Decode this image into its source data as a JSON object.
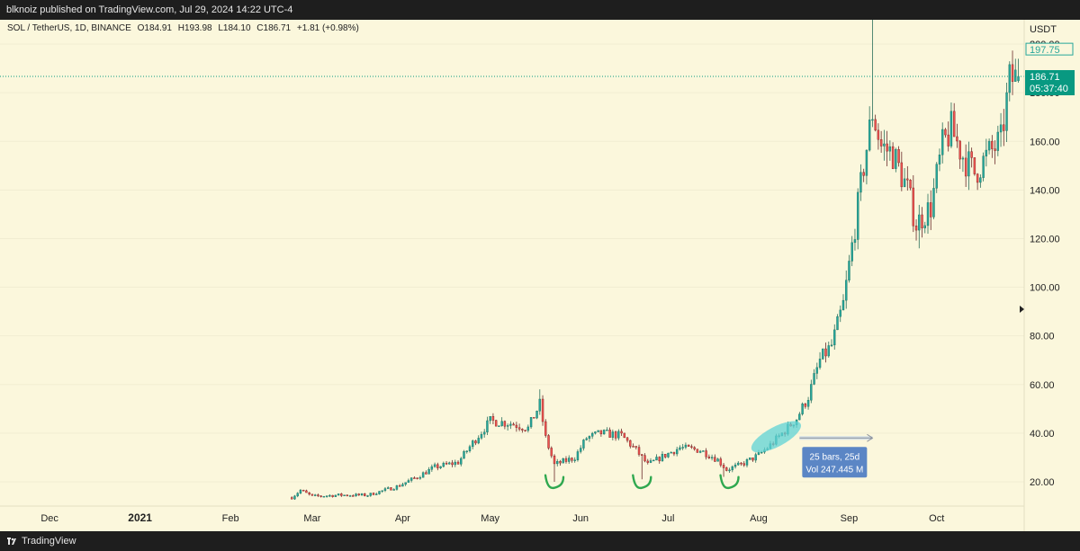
{
  "header": {
    "publish_text": "blknoiz published on TradingView.com, Jul 29, 2024 14:22 UTC-4"
  },
  "legend": {
    "symbol": "SOL / TetherUS, 1D, BINANCE",
    "open": "O184.91",
    "high": "H193.98",
    "low": "L184.10",
    "close": "C186.71",
    "change": "+1.81 (+0.98%)"
  },
  "footer": {
    "brand": "TradingView"
  },
  "price_scale": {
    "currency": "USDT",
    "last_price": "186.71",
    "countdown": "05:37:40",
    "high_label": "197.75",
    "partial_top_label": "200.00"
  },
  "measure": {
    "bars": "25 bars, 25d",
    "volume": "Vol 247.445 M"
  },
  "colors": {
    "up": "#26a69a",
    "down": "#ef5350",
    "background": "#fbf7dc",
    "highlight": "#5fd3d6",
    "annotation": "#2fa84f",
    "measure": "#5b86c5"
  },
  "chart_data": {
    "type": "candlestick",
    "symbol": "SOL / TetherUS",
    "interval": "1D",
    "exchange": "BINANCE",
    "last": {
      "open": 184.91,
      "high": 193.98,
      "low": 184.1,
      "close": 186.71,
      "change": 1.81,
      "change_pct": 0.98
    },
    "ylim": [
      10,
      210
    ],
    "yticks": [
      20,
      40,
      60,
      80,
      100,
      120,
      140,
      160,
      180,
      200
    ],
    "ytick_labels": [
      "20.00",
      "40.00",
      "60.00",
      "80.00",
      "100.00",
      "120.00",
      "140.00",
      "160.00",
      "180.00",
      "200.00"
    ],
    "xtick_labels": [
      "Dec",
      "2021",
      "Feb",
      "Mar",
      "Apr",
      "May",
      "Jun",
      "Jul",
      "Aug",
      "Sep",
      "Oct"
    ],
    "xticks": [
      "2020-12-01",
      "2021-01-01",
      "2021-02-01",
      "2021-03-01",
      "2021-04-01",
      "2021-05-01",
      "2021-06-01",
      "2021-07-01",
      "2021-08-01",
      "2021-09-01",
      "2021-10-01"
    ],
    "xlim": [
      "2020-11-14",
      "2021-10-31"
    ],
    "price_path": [
      [
        "2021-02-22",
        13.5
      ],
      [
        "2021-02-25",
        16.5
      ],
      [
        "2021-03-01",
        14
      ],
      [
        "2021-03-10",
        14.5
      ],
      [
        "2021-03-20",
        14.5
      ],
      [
        "2021-03-30",
        18
      ],
      [
        "2021-04-06",
        22
      ],
      [
        "2021-04-12",
        26
      ],
      [
        "2021-04-20",
        28
      ],
      [
        "2021-04-25",
        36
      ],
      [
        "2021-05-01",
        45
      ],
      [
        "2021-05-08",
        44
      ],
      [
        "2021-05-14",
        42
      ],
      [
        "2021-05-18",
        52
      ],
      [
        "2021-05-20",
        38
      ],
      [
        "2021-05-23",
        27
      ],
      [
        "2021-05-30",
        30
      ],
      [
        "2021-06-03",
        38
      ],
      [
        "2021-06-08",
        40
      ],
      [
        "2021-06-15",
        39
      ],
      [
        "2021-06-20",
        33
      ],
      [
        "2021-06-24",
        27
      ],
      [
        "2021-06-30",
        31
      ],
      [
        "2021-07-05",
        34
      ],
      [
        "2021-07-12",
        33
      ],
      [
        "2021-07-18",
        29
      ],
      [
        "2021-07-21",
        25
      ],
      [
        "2021-07-26",
        27
      ],
      [
        "2021-08-01",
        31
      ],
      [
        "2021-08-05",
        35
      ],
      [
        "2021-08-10",
        41
      ],
      [
        "2021-08-14",
        46
      ],
      [
        "2021-08-18",
        55
      ],
      [
        "2021-08-22",
        70
      ],
      [
        "2021-08-26",
        76
      ],
      [
        "2021-08-30",
        93
      ],
      [
        "2021-09-03",
        125
      ],
      [
        "2021-09-06",
        150
      ],
      [
        "2021-09-09",
        172
      ],
      [
        "2021-09-12",
        158
      ],
      [
        "2021-09-16",
        155
      ],
      [
        "2021-09-21",
        140
      ],
      [
        "2021-09-24",
        126
      ],
      [
        "2021-09-29",
        133
      ],
      [
        "2021-10-03",
        158
      ],
      [
        "2021-10-06",
        165
      ],
      [
        "2021-10-10",
        154
      ],
      [
        "2021-10-14",
        147
      ],
      [
        "2021-10-19",
        155
      ],
      [
        "2021-10-23",
        160
      ],
      [
        "2021-10-26",
        185
      ],
      [
        "2021-10-29",
        186.71
      ]
    ],
    "wick_highs": [
      [
        "2021-05-18",
        58
      ],
      [
        "2021-09-09",
        216
      ],
      [
        "2021-10-29",
        212
      ]
    ],
    "wick_lows": [
      [
        "2021-05-23",
        20
      ],
      [
        "2021-06-22",
        21
      ],
      [
        "2021-07-20",
        22
      ],
      [
        "2021-09-25",
        116
      ],
      [
        "2021-10-12",
        140
      ]
    ],
    "current_price": 186.71,
    "high_marker": 197.75,
    "highlight_range": [
      "2021-07-31",
      "2021-08-14"
    ],
    "bottom_marks": [
      "2021-05-23",
      "2021-06-22",
      "2021-07-22"
    ],
    "measure_range": {
      "start": "2021-08-15",
      "end": "2021-09-09",
      "price": 38
    }
  }
}
